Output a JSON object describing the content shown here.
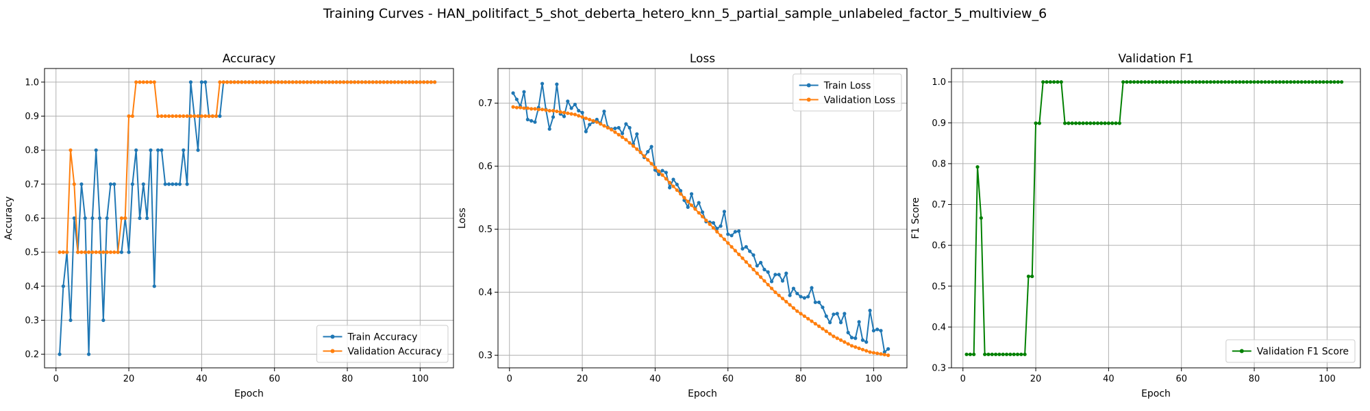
{
  "figure": {
    "suptitle": "Training Curves - HAN_politifact_5_shot_deberta_hetero_knn_5_partial_sample_unlabeled_factor_5_multiview_6"
  },
  "chart_data": [
    {
      "type": "line",
      "title": "Accuracy",
      "xlabel": "Epoch",
      "ylabel": "Accuracy",
      "xlim": [
        -3.15,
        109.15
      ],
      "ylim": [
        0.16,
        1.04
      ],
      "xticks": [
        0,
        20,
        40,
        60,
        80,
        100
      ],
      "yticks": [
        0.2,
        0.3,
        0.4,
        0.5,
        0.6,
        0.7,
        0.8,
        0.9,
        1.0
      ],
      "ytick_decimals": 1,
      "grid": true,
      "legend_position": "lower-right",
      "x": [
        1,
        2,
        3,
        4,
        5,
        6,
        7,
        8,
        9,
        10,
        11,
        12,
        13,
        14,
        15,
        16,
        17,
        18,
        19,
        20,
        21,
        22,
        23,
        24,
        25,
        26,
        27,
        28,
        29,
        30,
        31,
        32,
        33,
        34,
        35,
        36,
        37,
        38,
        39,
        40,
        41,
        42,
        43,
        44,
        45,
        46,
        47,
        48,
        49,
        50,
        51,
        52,
        53,
        54,
        55,
        56,
        57,
        58,
        59,
        60,
        61,
        62,
        63,
        64,
        65,
        66,
        67,
        68,
        69,
        70,
        71,
        72,
        73,
        74,
        75,
        76,
        77,
        78,
        79,
        80,
        81,
        82,
        83,
        84,
        85,
        86,
        87,
        88,
        89,
        90,
        91,
        92,
        93,
        94,
        95,
        96,
        97,
        98,
        99,
        100,
        101,
        102,
        103,
        104
      ],
      "series": [
        {
          "name": "Train Accuracy",
          "color": "#1f77b4",
          "values": [
            0.2,
            0.4,
            0.5,
            0.3,
            0.6,
            0.5,
            0.7,
            0.6,
            0.2,
            0.6,
            0.8,
            0.6,
            0.3,
            0.6,
            0.7,
            0.7,
            0.5,
            0.5,
            0.6,
            0.5,
            0.7,
            0.8,
            0.6,
            0.7,
            0.6,
            0.8,
            0.4,
            0.8,
            0.8,
            0.7,
            0.7,
            0.7,
            0.7,
            0.7,
            0.8,
            0.7,
            1.0,
            0.9,
            0.8,
            1.0,
            1.0,
            0.9,
            0.9,
            0.9,
            0.9,
            1.0,
            1.0,
            1.0,
            1.0,
            1.0,
            1.0,
            1.0,
            1.0,
            1.0,
            1.0,
            1.0,
            1.0,
            1.0,
            1.0,
            1.0,
            1.0,
            1.0,
            1.0,
            1.0,
            1.0,
            1.0,
            1.0,
            1.0,
            1.0,
            1.0,
            1.0,
            1.0,
            1.0,
            1.0,
            1.0,
            1.0,
            1.0,
            1.0,
            1.0,
            1.0,
            1.0,
            1.0,
            1.0,
            1.0,
            1.0,
            1.0,
            1.0,
            1.0,
            1.0,
            1.0,
            1.0,
            1.0,
            1.0,
            1.0,
            1.0,
            1.0,
            1.0,
            1.0,
            1.0,
            1.0,
            1.0,
            1.0,
            1.0,
            1.0
          ]
        },
        {
          "name": "Validation Accuracy",
          "color": "#ff7f0e",
          "values": [
            0.5,
            0.5,
            0.5,
            0.8,
            0.7,
            0.5,
            0.5,
            0.5,
            0.5,
            0.5,
            0.5,
            0.5,
            0.5,
            0.5,
            0.5,
            0.5,
            0.5,
            0.6,
            0.6,
            0.9,
            0.9,
            1.0,
            1.0,
            1.0,
            1.0,
            1.0,
            1.0,
            0.9,
            0.9,
            0.9,
            0.9,
            0.9,
            0.9,
            0.9,
            0.9,
            0.9,
            0.9,
            0.9,
            0.9,
            0.9,
            0.9,
            0.9,
            0.9,
            0.9,
            1.0,
            1.0,
            1.0,
            1.0,
            1.0,
            1.0,
            1.0,
            1.0,
            1.0,
            1.0,
            1.0,
            1.0,
            1.0,
            1.0,
            1.0,
            1.0,
            1.0,
            1.0,
            1.0,
            1.0,
            1.0,
            1.0,
            1.0,
            1.0,
            1.0,
            1.0,
            1.0,
            1.0,
            1.0,
            1.0,
            1.0,
            1.0,
            1.0,
            1.0,
            1.0,
            1.0,
            1.0,
            1.0,
            1.0,
            1.0,
            1.0,
            1.0,
            1.0,
            1.0,
            1.0,
            1.0,
            1.0,
            1.0,
            1.0,
            1.0,
            1.0,
            1.0,
            1.0,
            1.0,
            1.0,
            1.0,
            1.0,
            1.0,
            1.0,
            1.0
          ]
        }
      ]
    },
    {
      "type": "line",
      "title": "Loss",
      "xlabel": "Epoch",
      "ylabel": "Loss",
      "xlim": [
        -3.15,
        109.15
      ],
      "ylim": [
        0.28,
        0.755
      ],
      "xticks": [
        0,
        20,
        40,
        60,
        80,
        100
      ],
      "yticks": [
        0.3,
        0.4,
        0.5,
        0.6,
        0.7
      ],
      "ytick_decimals": 1,
      "grid": true,
      "legend_position": "upper-right",
      "x": [
        1,
        2,
        3,
        4,
        5,
        6,
        7,
        8,
        9,
        10,
        11,
        12,
        13,
        14,
        15,
        16,
        17,
        18,
        19,
        20,
        21,
        22,
        23,
        24,
        25,
        26,
        27,
        28,
        29,
        30,
        31,
        32,
        33,
        34,
        35,
        36,
        37,
        38,
        39,
        40,
        41,
        42,
        43,
        44,
        45,
        46,
        47,
        48,
        49,
        50,
        51,
        52,
        53,
        54,
        55,
        56,
        57,
        58,
        59,
        60,
        61,
        62,
        63,
        64,
        65,
        66,
        67,
        68,
        69,
        70,
        71,
        72,
        73,
        74,
        75,
        76,
        77,
        78,
        79,
        80,
        81,
        82,
        83,
        84,
        85,
        86,
        87,
        88,
        89,
        90,
        91,
        92,
        93,
        94,
        95,
        96,
        97,
        98,
        99,
        100,
        101,
        102,
        103,
        104
      ],
      "series": [
        {
          "name": "Train Loss",
          "color": "#1f77b4",
          "values": [
            0.716,
            0.706,
            0.695,
            0.718,
            0.674,
            0.672,
            0.67,
            0.693,
            0.731,
            0.69,
            0.659,
            0.678,
            0.73,
            0.683,
            0.679,
            0.703,
            0.692,
            0.698,
            0.688,
            0.685,
            0.655,
            0.666,
            0.67,
            0.674,
            0.668,
            0.687,
            0.662,
            0.659,
            0.66,
            0.661,
            0.652,
            0.667,
            0.661,
            0.635,
            0.651,
            0.622,
            0.614,
            0.623,
            0.631,
            0.594,
            0.587,
            0.593,
            0.59,
            0.566,
            0.579,
            0.571,
            0.561,
            0.546,
            0.535,
            0.556,
            0.533,
            0.542,
            0.527,
            0.512,
            0.511,
            0.51,
            0.501,
            0.505,
            0.528,
            0.492,
            0.49,
            0.496,
            0.497,
            0.469,
            0.472,
            0.465,
            0.459,
            0.442,
            0.447,
            0.436,
            0.432,
            0.417,
            0.428,
            0.428,
            0.418,
            0.43,
            0.395,
            0.406,
            0.398,
            0.393,
            0.391,
            0.393,
            0.407,
            0.384,
            0.384,
            0.376,
            0.362,
            0.352,
            0.365,
            0.366,
            0.352,
            0.366,
            0.336,
            0.328,
            0.327,
            0.353,
            0.324,
            0.321,
            0.371,
            0.339,
            0.341,
            0.339,
            0.305,
            0.31
          ]
        },
        {
          "name": "Validation Loss",
          "color": "#ff7f0e",
          "values": [
            0.694,
            0.693,
            0.693,
            0.692,
            0.692,
            0.691,
            0.691,
            0.69,
            0.69,
            0.689,
            0.688,
            0.688,
            0.687,
            0.686,
            0.685,
            0.684,
            0.683,
            0.682,
            0.68,
            0.678,
            0.676,
            0.674,
            0.672,
            0.67,
            0.667,
            0.664,
            0.661,
            0.658,
            0.654,
            0.65,
            0.646,
            0.642,
            0.637,
            0.632,
            0.627,
            0.622,
            0.616,
            0.61,
            0.604,
            0.598,
            0.592,
            0.586,
            0.58,
            0.574,
            0.568,
            0.562,
            0.556,
            0.55,
            0.544,
            0.538,
            0.532,
            0.526,
            0.52,
            0.514,
            0.508,
            0.502,
            0.496,
            0.49,
            0.484,
            0.478,
            0.472,
            0.466,
            0.46,
            0.454,
            0.448,
            0.442,
            0.436,
            0.43,
            0.424,
            0.418,
            0.412,
            0.406,
            0.4,
            0.395,
            0.39,
            0.385,
            0.38,
            0.375,
            0.37,
            0.366,
            0.362,
            0.358,
            0.354,
            0.35,
            0.346,
            0.342,
            0.338,
            0.334,
            0.33,
            0.327,
            0.324,
            0.321,
            0.318,
            0.315,
            0.313,
            0.311,
            0.309,
            0.307,
            0.305,
            0.304,
            0.303,
            0.302,
            0.301,
            0.3
          ]
        }
      ]
    },
    {
      "type": "line",
      "title": "Validation F1",
      "xlabel": "Epoch",
      "ylabel": "F1 Score",
      "xlim": [
        -3.15,
        109.15
      ],
      "ylim": [
        0.3,
        1.033
      ],
      "xticks": [
        0,
        20,
        40,
        60,
        80,
        100
      ],
      "yticks": [
        0.3,
        0.4,
        0.5,
        0.6,
        0.7,
        0.8,
        0.9,
        1.0
      ],
      "ytick_decimals": 1,
      "grid": true,
      "legend_position": "lower-right",
      "x": [
        1,
        2,
        3,
        4,
        5,
        6,
        7,
        8,
        9,
        10,
        11,
        12,
        13,
        14,
        15,
        16,
        17,
        18,
        19,
        20,
        21,
        22,
        23,
        24,
        25,
        26,
        27,
        28,
        29,
        30,
        31,
        32,
        33,
        34,
        35,
        36,
        37,
        38,
        39,
        40,
        41,
        42,
        43,
        44,
        45,
        46,
        47,
        48,
        49,
        50,
        51,
        52,
        53,
        54,
        55,
        56,
        57,
        58,
        59,
        60,
        61,
        62,
        63,
        64,
        65,
        66,
        67,
        68,
        69,
        70,
        71,
        72,
        73,
        74,
        75,
        76,
        77,
        78,
        79,
        80,
        81,
        82,
        83,
        84,
        85,
        86,
        87,
        88,
        89,
        90,
        91,
        92,
        93,
        94,
        95,
        96,
        97,
        98,
        99,
        100,
        101,
        102,
        103,
        104
      ],
      "series": [
        {
          "name": "Validation F1 Score",
          "color": "#008000",
          "values": [
            0.333,
            0.333,
            0.333,
            0.792,
            0.667,
            0.333,
            0.333,
            0.333,
            0.333,
            0.333,
            0.333,
            0.333,
            0.333,
            0.333,
            0.333,
            0.333,
            0.333,
            0.524,
            0.524,
            0.899,
            0.899,
            1.0,
            1.0,
            1.0,
            1.0,
            1.0,
            1.0,
            0.899,
            0.899,
            0.899,
            0.899,
            0.899,
            0.899,
            0.899,
            0.899,
            0.899,
            0.899,
            0.899,
            0.899,
            0.899,
            0.899,
            0.899,
            0.899,
            1.0,
            1.0,
            1.0,
            1.0,
            1.0,
            1.0,
            1.0,
            1.0,
            1.0,
            1.0,
            1.0,
            1.0,
            1.0,
            1.0,
            1.0,
            1.0,
            1.0,
            1.0,
            1.0,
            1.0,
            1.0,
            1.0,
            1.0,
            1.0,
            1.0,
            1.0,
            1.0,
            1.0,
            1.0,
            1.0,
            1.0,
            1.0,
            1.0,
            1.0,
            1.0,
            1.0,
            1.0,
            1.0,
            1.0,
            1.0,
            1.0,
            1.0,
            1.0,
            1.0,
            1.0,
            1.0,
            1.0,
            1.0,
            1.0,
            1.0,
            1.0,
            1.0,
            1.0,
            1.0,
            1.0,
            1.0,
            1.0,
            1.0,
            1.0,
            1.0,
            1.0
          ]
        }
      ]
    }
  ]
}
